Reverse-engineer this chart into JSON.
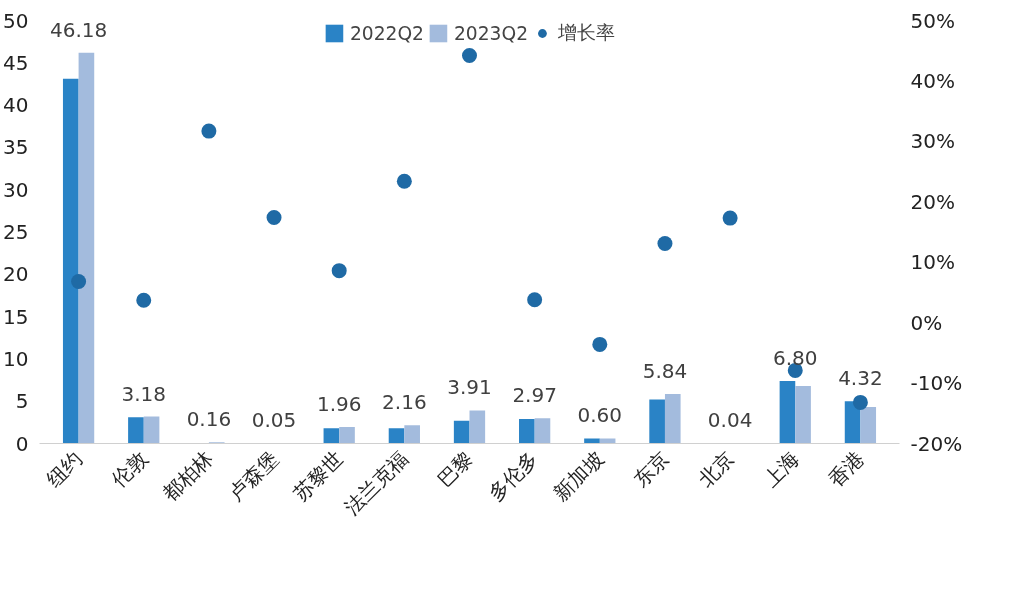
{
  "chart_data": {
    "type": "bar",
    "categories": [
      "纽约",
      "伦敦",
      "都柏林",
      "卢森堡",
      "苏黎世",
      "法兰克福",
      "巴黎",
      "多伦多",
      "新加坡",
      "东京",
      "北京",
      "上海",
      "香港"
    ],
    "series": [
      {
        "name": "2022Q2",
        "color": "#2a83c6",
        "values": [
          43.1,
          3.1,
          null,
          0.0,
          1.8,
          1.8,
          2.7,
          2.9,
          0.6,
          5.2,
          0.0,
          7.4,
          5.0
        ]
      },
      {
        "name": "2023Q2",
        "color": "#a3bbdd",
        "values": [
          46.18,
          3.18,
          0.16,
          0.05,
          1.96,
          2.16,
          3.91,
          2.97,
          0.6,
          5.84,
          0.04,
          6.8,
          4.32
        ],
        "value_labels": [
          "46.18",
          "3.18",
          "0.16",
          "0.05",
          "1.96",
          "2.16",
          "3.91",
          "2.97",
          "0.60",
          "5.84",
          "0.04",
          "6.80",
          "4.32"
        ]
      },
      {
        "name": "增长率",
        "type": "scatter",
        "axis": "y2",
        "color": "#1f6aa5",
        "marker": "circle",
        "values": [
          6.8,
          3.7,
          31.7,
          17.4,
          8.6,
          23.4,
          44.2,
          3.8,
          -3.6,
          13.1,
          17.3,
          -7.9,
          -13.2
        ]
      }
    ],
    "ylim": [
      0,
      50
    ],
    "yticks": [
      0,
      5,
      10,
      15,
      20,
      25,
      30,
      35,
      40,
      45,
      50
    ],
    "y2lim": [
      -20,
      50
    ],
    "y2ticks": [
      {
        "value": -20,
        "label": "-20%"
      },
      {
        "value": -10,
        "label": "-10%"
      },
      {
        "value": 0,
        "label": "0%"
      },
      {
        "value": 10,
        "label": "10%"
      },
      {
        "value": 20,
        "label": "20%"
      },
      {
        "value": 30,
        "label": "30%"
      },
      {
        "value": 40,
        "label": "40%"
      },
      {
        "value": 50,
        "label": "50%"
      }
    ],
    "grid": false,
    "legend": "top"
  }
}
